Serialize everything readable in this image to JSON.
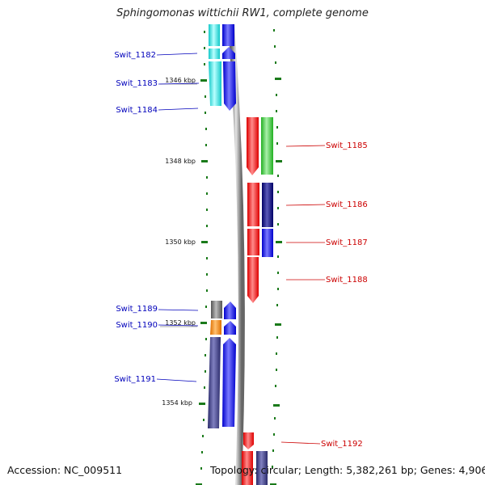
{
  "header": {
    "title": "Sphingomonas wittichii RW1, complete genome"
  },
  "footer": {
    "accession": "Accession: NC_009511",
    "topology": "Topology: circular; Length: 5,382,261 bp; Genes: 4,906"
  },
  "scale_labels": [
    "1346 kbp",
    "1348 kbp",
    "1350 kbp",
    "1352 kbp",
    "1354 kbp"
  ],
  "genes": {
    "left": [
      "Swit_1182",
      "Swit_1183",
      "Swit_1184",
      "Swit_1189",
      "Swit_1190",
      "Swit_1191"
    ],
    "right": [
      "Swit_1185",
      "Swit_1186",
      "Swit_1187",
      "Swit_1188",
      "Swit_1192"
    ]
  },
  "colors": {
    "left_label": "#0000bb",
    "right_label": "#cc0000",
    "tick": "#1a7a1a",
    "backbone": "#888888",
    "cyan": "#22e5e5",
    "blue": "#0000ee",
    "red": "#ee0000",
    "green": "#33cc33",
    "navy": "#000080",
    "grey": "#707070",
    "orange": "#ff8c00",
    "slate": "#3a3a80"
  }
}
